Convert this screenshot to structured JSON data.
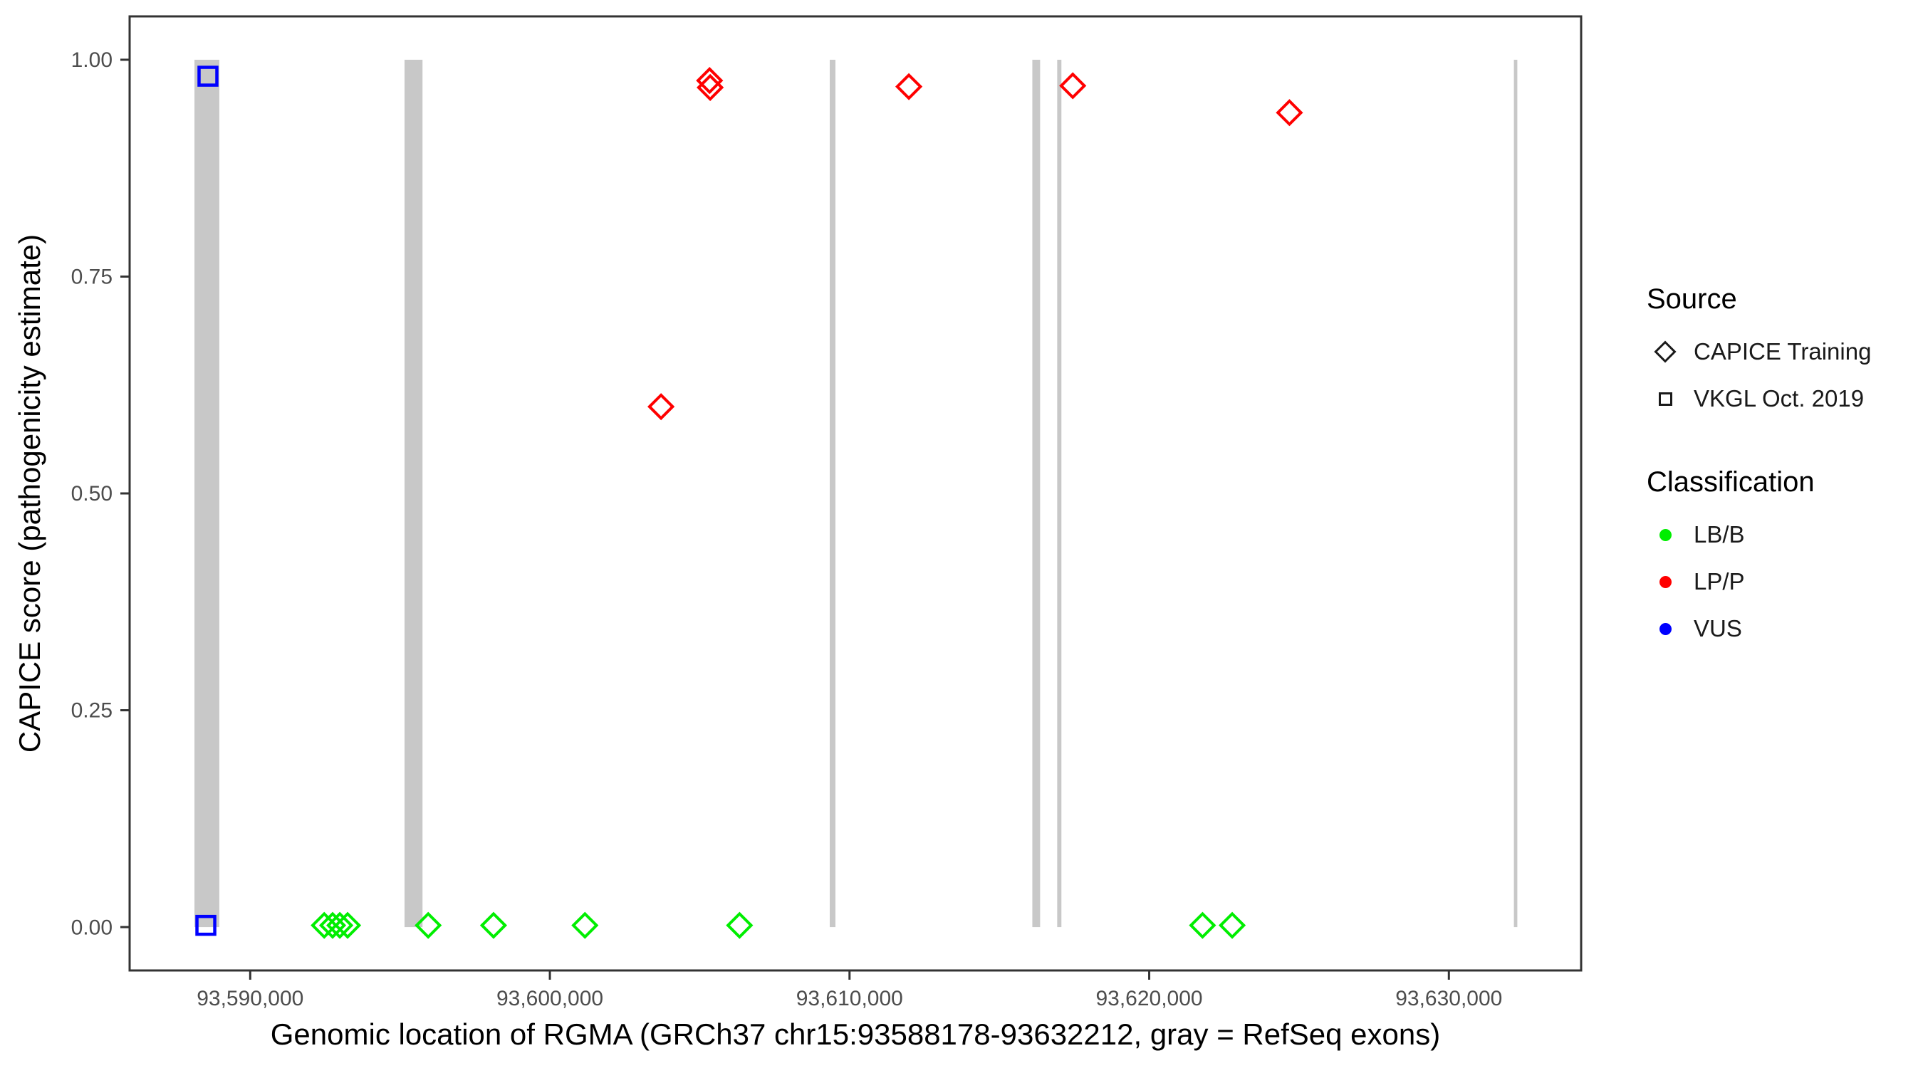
{
  "chart_data": {
    "type": "scatter",
    "title": "",
    "xlabel": "Genomic location of RGMA (GRCh37 chr15:93588178-93632212, gray = RefSeq exons)",
    "ylabel": "CAPICE score (pathogenicity estimate)",
    "xlim": [
      93585976,
      93634414
    ],
    "ylim": [
      -0.05,
      1.05
    ],
    "grid": false,
    "x_ticks": [
      {
        "value": 93590000,
        "label": "93,590,000"
      },
      {
        "value": 93600000,
        "label": "93,600,000"
      },
      {
        "value": 93610000,
        "label": "93,610,000"
      },
      {
        "value": 93620000,
        "label": "93,620,000"
      },
      {
        "value": 93630000,
        "label": "93,630,000"
      }
    ],
    "y_ticks": [
      {
        "value": 1.0,
        "label": "1.00"
      },
      {
        "value": 0.75,
        "label": "0.75"
      },
      {
        "value": 0.5,
        "label": "0.50"
      },
      {
        "value": 0.25,
        "label": "0.25"
      },
      {
        "value": 0.0,
        "label": "0.00"
      }
    ],
    "exon_color": "#C8C8C8",
    "exons": [
      {
        "start": 93588140,
        "end": 93588970
      },
      {
        "start": 93595150,
        "end": 93595750
      },
      {
        "start": 93609340,
        "end": 93609530
      },
      {
        "start": 93616100,
        "end": 93616360
      },
      {
        "start": 93616930,
        "end": 93617070
      },
      {
        "start": 93632170,
        "end": 93632285
      }
    ],
    "series": [
      {
        "name": "CAPICE Training / LB/B",
        "source": "CAPICE Training",
        "classification": "LB/B",
        "marker": "diamond",
        "color": "#00EE00",
        "points": [
          {
            "x": 93592470,
            "y": 0.002
          },
          {
            "x": 93592750,
            "y": 0.002
          },
          {
            "x": 93592990,
            "y": 0.002
          },
          {
            "x": 93593250,
            "y": 0.002
          },
          {
            "x": 93595940,
            "y": 0.002
          },
          {
            "x": 93598120,
            "y": 0.002
          },
          {
            "x": 93601170,
            "y": 0.002
          },
          {
            "x": 93606330,
            "y": 0.002
          },
          {
            "x": 93621780,
            "y": 0.002
          },
          {
            "x": 93622770,
            "y": 0.002
          }
        ]
      },
      {
        "name": "CAPICE Training / LP/P",
        "source": "CAPICE Training",
        "classification": "LP/P",
        "marker": "diamond",
        "color": "#FF0000",
        "points": [
          {
            "x": 93603710,
            "y": 0.6
          },
          {
            "x": 93605330,
            "y": 0.976
          },
          {
            "x": 93605350,
            "y": 0.968
          },
          {
            "x": 93611980,
            "y": 0.969
          },
          {
            "x": 93617450,
            "y": 0.97
          },
          {
            "x": 93624680,
            "y": 0.939
          }
        ]
      },
      {
        "name": "VKGL Oct. 2019 / VUS",
        "source": "VKGL Oct. 2019",
        "classification": "VUS",
        "marker": "square",
        "color": "#0000FF",
        "points": [
          {
            "x": 93588590,
            "y": 0.981
          },
          {
            "x": 93588520,
            "y": 0.002
          }
        ]
      }
    ]
  },
  "axes": {
    "x_title": "Genomic location of RGMA (GRCh37 chr15:93588178-93632212, gray = RefSeq exons)",
    "y_title": "CAPICE score (pathogenicity estimate)"
  },
  "legend": {
    "source": {
      "title": "Source",
      "items": [
        {
          "label": "CAPICE Training",
          "marker": "diamond-icon"
        },
        {
          "label": "VKGL Oct. 2019",
          "marker": "square-icon"
        }
      ]
    },
    "classification": {
      "title": "Classification",
      "items": [
        {
          "label": "LB/B",
          "color": "#00EE00"
        },
        {
          "label": "LP/P",
          "color": "#FF0000"
        },
        {
          "label": "VUS",
          "color": "#0000FF"
        }
      ]
    }
  },
  "style_colors": {
    "panel_border": "#333333",
    "tick_label": "#4D4D4D",
    "exon_gray": "#C8C8C8"
  }
}
